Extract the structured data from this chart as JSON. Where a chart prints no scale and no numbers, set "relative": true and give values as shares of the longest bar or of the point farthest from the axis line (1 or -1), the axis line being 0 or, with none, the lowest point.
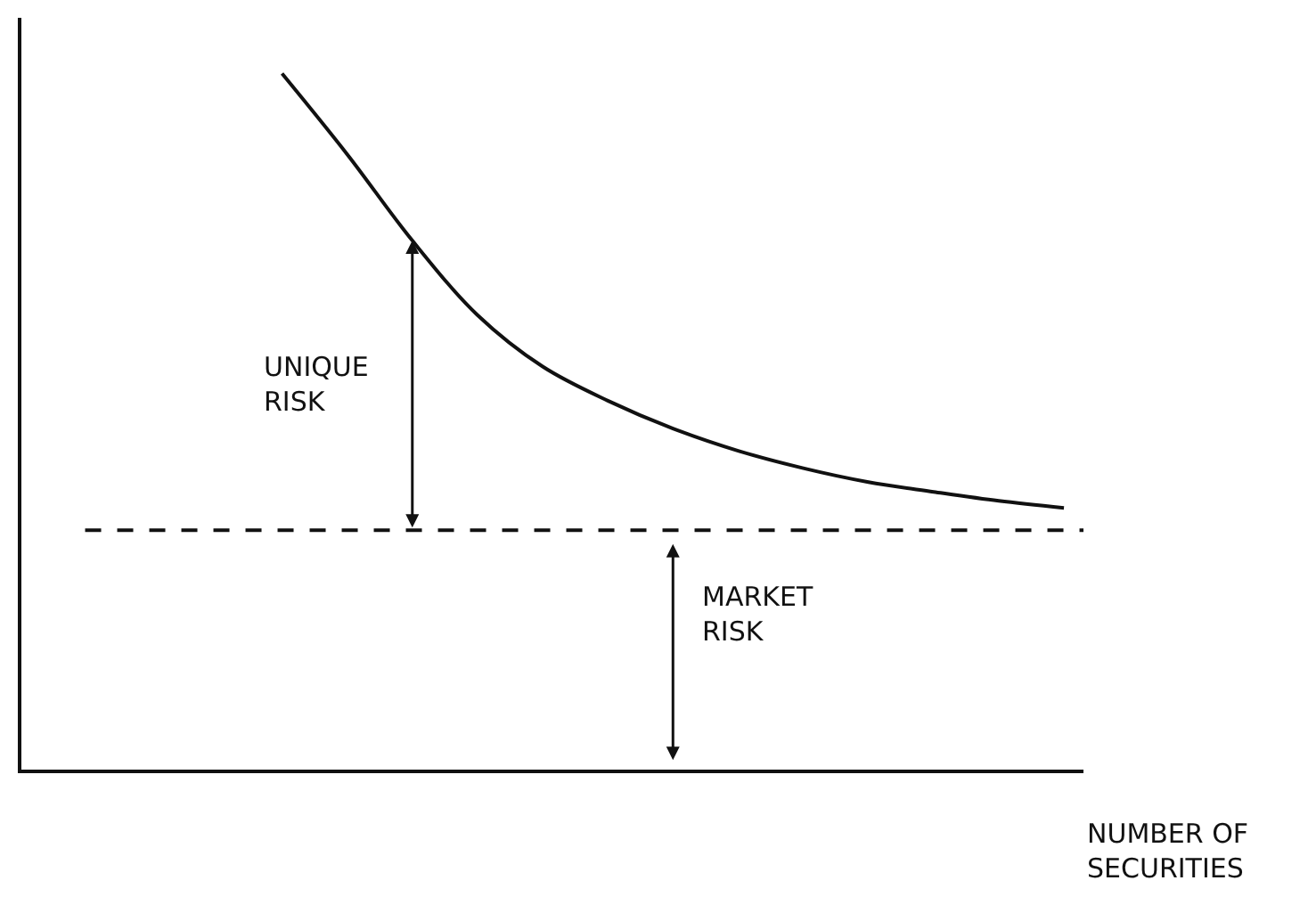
{
  "chart_data": {
    "type": "line",
    "relative": true,
    "xlabel": "NUMBER OF\nSECURITIES",
    "categories": [
      null,
      null,
      null,
      null,
      null,
      null,
      null,
      null,
      null,
      null,
      null,
      null,
      null,
      null,
      null
    ],
    "series": [
      {
        "color": "#111111",
        "values": [
          null,
          null,
          1,
          0.884,
          0.76,
          0.653,
          0.579,
          0.53,
          0.49,
          0.458,
          0.433,
          0.413,
          0.399,
          0.386,
          0.376
        ]
      }
    ],
    "ref_lines": [
      {
        "axis": "y",
        "value": 0.344,
        "color": "#111111",
        "line_style": "dashed"
      }
    ],
    "annotations": [
      "UNIQUE\nRISK",
      "MARKET\nRISK"
    ],
    "marker": "none",
    "line_style": "solid",
    "tick_labels": false
  }
}
